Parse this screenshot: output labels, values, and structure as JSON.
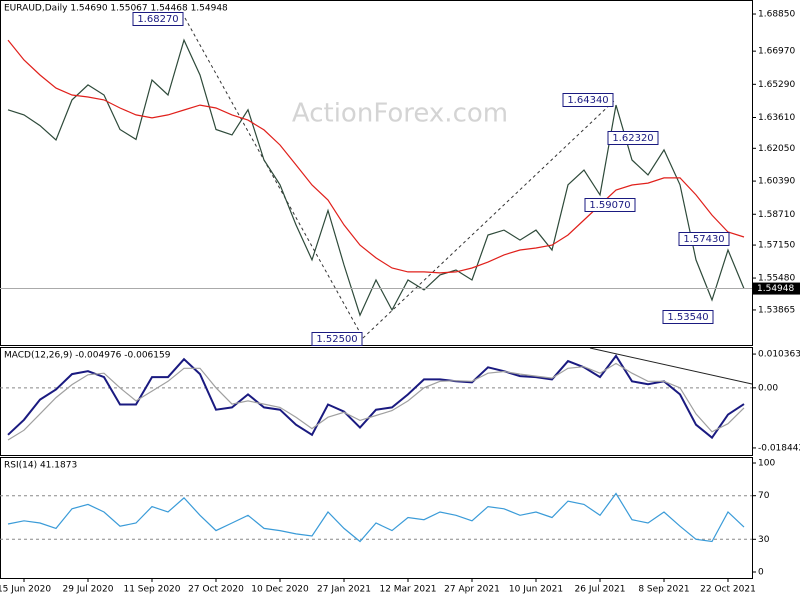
{
  "chart_data": [
    {
      "type": "line",
      "header": "EURAUD,Daily  1.54690 1.55067 1.54468 1.54948",
      "watermark": "ActionForex.com",
      "series": [
        {
          "color": "#2e4a3a",
          "values": [
            1.64,
            1.6374,
            1.632,
            1.6247,
            1.645,
            1.6526,
            1.6475,
            1.63,
            1.625,
            1.6551,
            1.6475,
            1.6753,
            1.6576,
            1.63,
            1.6273,
            1.64,
            1.6146,
            1.602,
            1.5817,
            1.564,
            1.589,
            1.5614,
            1.536,
            1.5538,
            1.5386,
            1.5538,
            1.5488,
            1.5564,
            1.5589,
            1.5538,
            1.5766,
            1.5791,
            1.574,
            1.5791,
            1.569,
            1.602,
            1.6095,
            1.5969,
            1.6424,
            1.6146,
            1.607,
            1.6197,
            1.602,
            1.564,
            1.5437,
            1.569,
            1.54948
          ]
        },
        {
          "color": "#e0201b",
          "values": [
            1.6753,
            1.6652,
            1.6576,
            1.651,
            1.6475,
            1.6465,
            1.645,
            1.6409,
            1.6374,
            1.6359,
            1.6374,
            1.6399,
            1.6424,
            1.6409,
            1.6374,
            1.6348,
            1.6298,
            1.6222,
            1.6121,
            1.6019,
            1.5943,
            1.5817,
            1.5715,
            1.565,
            1.5599,
            1.5579,
            1.5579,
            1.5574,
            1.5579,
            1.5599,
            1.5629,
            1.5665,
            1.569,
            1.57,
            1.5715,
            1.5766,
            1.5842,
            1.5918,
            1.5994,
            1.6019,
            1.6029,
            1.6055,
            1.6055,
            1.5969,
            1.5867,
            1.5781,
            1.5756
          ]
        }
      ],
      "ylim": [
        1.5209,
        1.6956
      ],
      "yticks": [
        {
          "value": 1.6885,
          "label": "1.68850"
        },
        {
          "value": 1.6697,
          "label": "1.66970"
        },
        {
          "value": 1.6529,
          "label": "1.65290"
        },
        {
          "value": 1.6361,
          "label": "1.63610"
        },
        {
          "value": 1.6205,
          "label": "1.62050"
        },
        {
          "value": 1.6039,
          "label": "1.60390"
        },
        {
          "value": 1.5871,
          "label": "1.58710"
        },
        {
          "value": 1.5715,
          "label": "1.57150"
        },
        {
          "value": 1.5548,
          "label": "1.55480"
        },
        {
          "value": 1.53865,
          "label": "1.53865"
        }
      ],
      "last": {
        "value": 1.54948,
        "label": "1.54948"
      },
      "annotations": [
        "1.68270",
        "1.52500",
        "1.64340",
        "1.62320",
        "1.59070",
        "1.57430",
        "1.53540"
      ]
    },
    {
      "type": "line",
      "title": "MACD(12,26,9) -0.004976 -0.006159",
      "series": [
        {
          "color": "#1a1a80",
          "values": [
            -0.0144,
            -0.0098,
            -0.0036,
            -0.0005,
            0.0042,
            0.0051,
            0.0033,
            -0.0051,
            -0.0051,
            0.0033,
            0.0033,
            0.0088,
            0.0042,
            -0.0067,
            -0.006,
            -0.002,
            -0.006,
            -0.0067,
            -0.0113,
            -0.0144,
            -0.0051,
            -0.0073,
            -0.0122,
            -0.0067,
            -0.006,
            -0.002,
            0.0026,
            0.0026,
            0.002,
            0.0017,
            0.0063,
            0.0051,
            0.0036,
            0.0033,
            0.0026,
            0.0082,
            0.0063,
            0.0033,
            0.0098,
            0.002,
            0.0011,
            0.002,
            -0.002,
            -0.0113,
            -0.0153,
            -0.0082,
            -0.004976
          ]
        },
        {
          "color": "#a0a0a0",
          "values": [
            -0.016,
            -0.013,
            -0.008,
            -0.003,
            0.001,
            0.004,
            0.0045,
            0.0,
            -0.004,
            -0.001,
            0.002,
            0.006,
            0.006,
            0.0,
            -0.005,
            -0.004,
            -0.005,
            -0.006,
            -0.009,
            -0.0125,
            -0.009,
            -0.0075,
            -0.01,
            -0.0085,
            -0.007,
            -0.004,
            0.0,
            0.002,
            0.0022,
            0.002,
            0.0045,
            0.005,
            0.0042,
            0.0036,
            0.003,
            0.006,
            0.0065,
            0.0045,
            0.0075,
            0.0045,
            0.002,
            0.002,
            0.0,
            -0.008,
            -0.0135,
            -0.011,
            -0.006159
          ]
        }
      ],
      "ylim": [
        -0.02061,
        0.01253
      ],
      "yticks": [
        0.010363,
        {
          "value": 0,
          "label": "0.00"
        },
        -0.018442
      ],
      "levels": [
        0
      ]
    },
    {
      "type": "line",
      "title": "RSI(14) 41.1873",
      "categories": [
        null,
        "15 Jun 2020",
        null,
        null,
        null,
        "29 Jul 2020",
        null,
        null,
        null,
        "11 Sep 2020",
        null,
        null,
        null,
        "27 Oct 2020",
        null,
        null,
        null,
        "10 Dec 2020",
        null,
        null,
        null,
        "27 Jan 2021",
        null,
        null,
        null,
        "12 Mar 2021",
        null,
        null,
        null,
        "27 Apr 2021",
        null,
        null,
        null,
        "10 Jun 2021",
        null,
        null,
        null,
        "26 Jul 2021",
        null,
        null,
        null,
        "8 Sep 2021",
        null,
        null,
        null,
        "22 Oct 2021",
        null
      ],
      "series": [
        {
          "color": "#3a9bd8",
          "values": [
            44,
            47,
            45,
            40,
            58,
            62,
            55,
            42,
            45,
            60,
            55,
            68,
            52,
            38,
            45,
            52,
            40,
            38,
            35,
            33,
            55,
            40,
            28,
            45,
            38,
            50,
            48,
            55,
            52,
            47,
            60,
            58,
            52,
            55,
            50,
            65,
            62,
            52,
            72,
            48,
            45,
            55,
            42,
            30,
            28,
            55,
            41.1873
          ]
        }
      ],
      "ylim": [
        -5.5,
        105.5
      ],
      "yticks": [
        100,
        70,
        30,
        0
      ],
      "levels": [
        30,
        70
      ]
    }
  ]
}
